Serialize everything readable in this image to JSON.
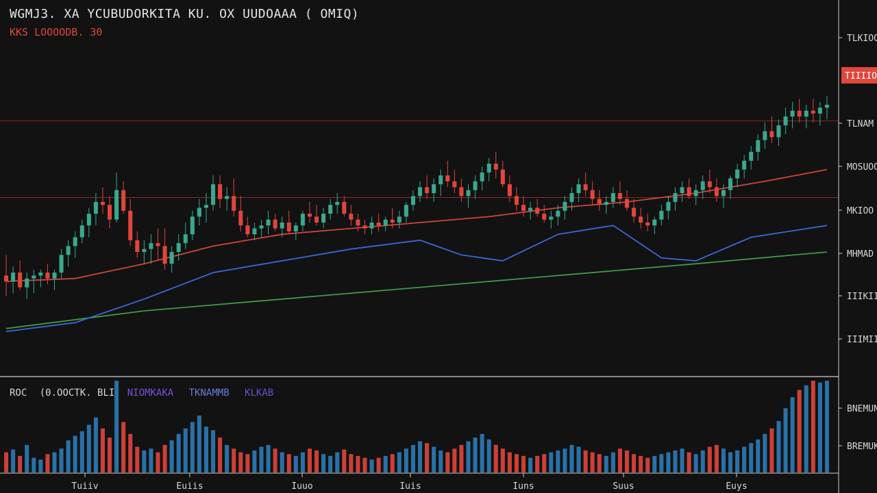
{
  "header": {
    "title": "WGMJ3. XA YCUBUDORKITA  KU. OX UUDOAAA ( OMIQ)",
    "subtitle": "KKS LOOOODB. 30"
  },
  "volume_legend": {
    "label": "ROC",
    "series_1": "(0.OOCTK. BLI",
    "series_2": "NIOMKAKA",
    "series_3": "TKNAMMB",
    "series_4": "KLKAB"
  },
  "colors": {
    "background": "#121212",
    "up": "#3aa88e",
    "down": "#e0463c",
    "ma_fast": "#d0463c",
    "ma_mid": "#3a68d8",
    "ma_slow": "#3f9a48",
    "volume_blue": "#2c7cb8",
    "grid_red": "#8c2a24"
  },
  "chart_data": {
    "type": "candlestick",
    "title": "WGMJ3. XA YCUBUDORKITA  KU. OX UUDOAAA ( OMIQ)",
    "y_tick_labels": [
      "TLKIOO",
      "TLNAM",
      "MOSUOO",
      "MKIOO",
      "MHMAD",
      "IIIKIIO",
      "IIIMIIK"
    ],
    "current_price_label": "TIIIIOO",
    "volume_tick_labels": [
      "BNEMUN",
      "BREMUK"
    ],
    "x_tick_labels": [
      "Tuiiv",
      "Euiis",
      "Iuuo",
      "Iuis",
      "Iuns",
      "Suus",
      "Euys"
    ],
    "ylim": [
      0,
      100
    ],
    "x_count": 120,
    "grid": false,
    "horizontal_levels": [
      58.5,
      84.5
    ],
    "candles": [
      [
        32,
        39,
        25,
        30
      ],
      [
        30,
        35,
        26,
        33
      ],
      [
        33,
        37,
        27,
        28
      ],
      [
        28,
        33,
        24,
        31
      ],
      [
        31,
        34,
        26,
        32
      ],
      [
        32,
        34,
        28,
        33
      ],
      [
        33,
        36,
        29,
        31
      ],
      [
        31,
        34,
        27,
        33
      ],
      [
        33,
        41,
        31,
        39
      ],
      [
        39,
        44,
        35,
        42
      ],
      [
        42,
        47,
        38,
        45
      ],
      [
        45,
        51,
        43,
        49
      ],
      [
        49,
        55,
        45,
        53
      ],
      [
        53,
        60,
        49,
        57
      ],
      [
        57,
        62,
        53,
        56
      ],
      [
        56,
        59,
        48,
        51
      ],
      [
        51,
        67,
        50,
        61
      ],
      [
        61,
        64,
        53,
        54
      ],
      [
        54,
        58,
        42,
        44
      ],
      [
        44,
        47,
        38,
        40
      ],
      [
        40,
        44,
        36,
        41
      ],
      [
        41,
        46,
        36,
        43
      ],
      [
        43,
        48,
        37,
        42
      ],
      [
        42,
        48,
        34,
        36
      ],
      [
        36,
        42,
        33,
        40
      ],
      [
        40,
        46,
        37,
        43
      ],
      [
        43,
        50,
        41,
        46
      ],
      [
        46,
        54,
        44,
        52
      ],
      [
        52,
        58,
        49,
        55
      ],
      [
        55,
        60,
        50,
        56
      ],
      [
        56,
        66,
        54,
        63
      ],
      [
        63,
        66,
        55,
        58
      ],
      [
        58,
        62,
        54,
        59
      ],
      [
        59,
        65,
        52,
        54
      ],
      [
        54,
        59,
        47,
        49
      ],
      [
        49,
        52,
        45,
        46
      ],
      [
        46,
        50,
        44,
        48
      ],
      [
        48,
        51,
        45,
        49
      ],
      [
        49,
        54,
        46,
        51
      ],
      [
        51,
        53,
        47,
        48
      ],
      [
        48,
        52,
        45,
        50
      ],
      [
        50,
        54,
        46,
        47
      ],
      [
        47,
        50,
        44,
        49
      ],
      [
        49,
        54,
        47,
        53
      ],
      [
        53,
        57,
        50,
        52
      ],
      [
        52,
        56,
        49,
        50
      ],
      [
        50,
        55,
        48,
        53
      ],
      [
        53,
        58,
        51,
        56
      ],
      [
        56,
        60,
        53,
        57
      ],
      [
        57,
        59,
        52,
        53
      ],
      [
        53,
        56,
        49,
        51
      ],
      [
        51,
        53,
        47,
        49
      ],
      [
        49,
        51,
        46,
        48
      ],
      [
        48,
        52,
        46,
        50
      ],
      [
        50,
        53,
        47,
        49
      ],
      [
        49,
        52,
        47,
        51
      ],
      [
        51,
        55,
        48,
        50
      ],
      [
        50,
        54,
        48,
        52
      ],
      [
        52,
        57,
        50,
        56
      ],
      [
        56,
        61,
        54,
        59
      ],
      [
        59,
        64,
        57,
        62
      ],
      [
        62,
        66,
        58,
        60
      ],
      [
        60,
        65,
        57,
        63
      ],
      [
        63,
        68,
        59,
        66
      ],
      [
        66,
        71,
        62,
        64
      ],
      [
        64,
        68,
        60,
        62
      ],
      [
        62,
        65,
        57,
        59
      ],
      [
        59,
        63,
        55,
        61
      ],
      [
        61,
        66,
        58,
        64
      ],
      [
        64,
        69,
        61,
        67
      ],
      [
        67,
        72,
        64,
        70
      ],
      [
        70,
        74,
        65,
        68
      ],
      [
        68,
        71,
        62,
        63
      ],
      [
        63,
        66,
        57,
        59
      ],
      [
        59,
        62,
        54,
        56
      ],
      [
        56,
        59,
        52,
        54
      ],
      [
        54,
        57,
        51,
        55
      ],
      [
        55,
        58,
        52,
        53
      ],
      [
        53,
        56,
        50,
        51
      ],
      [
        51,
        54,
        48,
        52
      ],
      [
        52,
        56,
        49,
        54
      ],
      [
        54,
        59,
        51,
        57
      ],
      [
        57,
        62,
        54,
        60
      ],
      [
        60,
        65,
        57,
        63
      ],
      [
        63,
        67,
        59,
        61
      ],
      [
        61,
        64,
        56,
        58
      ],
      [
        58,
        61,
        54,
        56
      ],
      [
        56,
        59,
        53,
        57
      ],
      [
        57,
        62,
        55,
        60
      ],
      [
        60,
        64,
        56,
        58
      ],
      [
        58,
        61,
        54,
        55
      ],
      [
        55,
        58,
        50,
        52
      ],
      [
        52,
        55,
        48,
        50
      ],
      [
        50,
        53,
        47,
        49
      ],
      [
        49,
        52,
        46,
        51
      ],
      [
        51,
        56,
        49,
        54
      ],
      [
        54,
        59,
        51,
        57
      ],
      [
        57,
        62,
        54,
        60
      ],
      [
        60,
        64,
        57,
        62
      ],
      [
        62,
        65,
        58,
        59
      ],
      [
        59,
        63,
        56,
        61
      ],
      [
        61,
        66,
        58,
        64
      ],
      [
        64,
        68,
        60,
        62
      ],
      [
        62,
        65,
        57,
        59
      ],
      [
        59,
        63,
        55,
        61
      ],
      [
        61,
        66,
        58,
        65
      ],
      [
        65,
        70,
        62,
        68
      ],
      [
        68,
        73,
        65,
        71
      ],
      [
        71,
        76,
        68,
        74
      ],
      [
        74,
        80,
        71,
        78
      ],
      [
        78,
        84,
        75,
        81
      ],
      [
        81,
        86,
        77,
        79
      ],
      [
        79,
        85,
        76,
        83
      ],
      [
        83,
        89,
        80,
        86
      ],
      [
        86,
        91,
        82,
        88
      ],
      [
        88,
        92,
        84,
        86
      ],
      [
        86,
        90,
        82,
        88
      ],
      [
        88,
        92,
        84,
        87
      ],
      [
        87,
        91,
        83,
        89
      ],
      [
        89,
        93,
        85,
        90
      ]
    ],
    "volume": [
      22,
      25,
      18,
      30,
      16,
      14,
      20,
      22,
      26,
      35,
      40,
      45,
      52,
      60,
      48,
      38,
      100,
      55,
      42,
      28,
      24,
      26,
      22,
      30,
      35,
      42,
      48,
      55,
      62,
      50,
      46,
      38,
      30,
      26,
      22,
      20,
      24,
      28,
      30,
      26,
      22,
      20,
      18,
      22,
      26,
      24,
      20,
      18,
      22,
      25,
      20,
      18,
      16,
      14,
      16,
      18,
      20,
      22,
      26,
      30,
      34,
      32,
      28,
      24,
      22,
      26,
      30,
      34,
      38,
      42,
      36,
      30,
      26,
      22,
      20,
      18,
      16,
      18,
      20,
      22,
      24,
      26,
      30,
      28,
      24,
      22,
      20,
      18,
      22,
      26,
      24,
      20,
      18,
      16,
      18,
      20,
      22,
      24,
      26,
      22,
      20,
      24,
      28,
      30,
      26,
      22,
      24,
      28,
      32,
      36,
      42,
      48,
      56,
      70,
      82,
      90,
      95,
      100,
      98,
      100
    ],
    "ma_fast": [
      [
        0,
        30
      ],
      [
        10,
        31
      ],
      [
        20,
        36
      ],
      [
        30,
        42
      ],
      [
        40,
        46
      ],
      [
        50,
        48
      ],
      [
        60,
        50
      ],
      [
        70,
        52
      ],
      [
        80,
        55
      ],
      [
        90,
        57
      ],
      [
        100,
        60
      ],
      [
        110,
        64
      ],
      [
        119,
        68
      ]
    ],
    "ma_mid": [
      [
        0,
        13
      ],
      [
        10,
        16
      ],
      [
        20,
        24
      ],
      [
        30,
        33
      ],
      [
        40,
        37
      ],
      [
        50,
        41
      ],
      [
        60,
        44
      ],
      [
        66,
        39
      ],
      [
        72,
        37
      ],
      [
        80,
        46
      ],
      [
        88,
        49
      ],
      [
        95,
        38
      ],
      [
        100,
        37
      ],
      [
        108,
        45
      ],
      [
        119,
        49
      ]
    ],
    "ma_slow": [
      [
        0,
        14
      ],
      [
        20,
        20
      ],
      [
        40,
        24
      ],
      [
        60,
        28
      ],
      [
        80,
        32
      ],
      [
        100,
        36
      ],
      [
        119,
        40
      ]
    ]
  }
}
